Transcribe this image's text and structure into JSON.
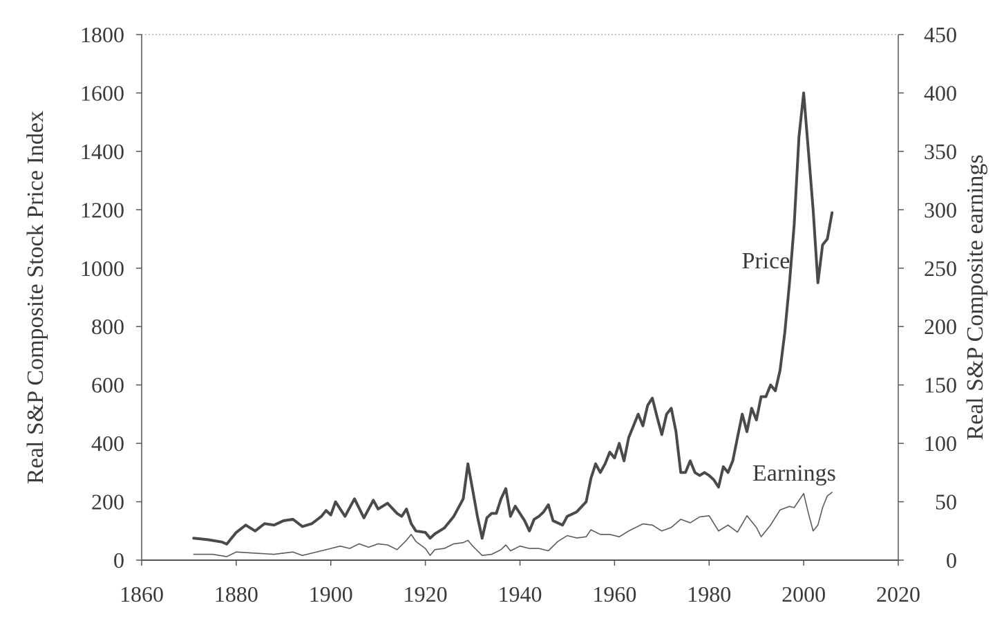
{
  "chart_data": {
    "type": "line",
    "title": "",
    "xlabel": "",
    "ylabel": "Real S&P Composite Stock Price Index",
    "y2label": "Real S&P Composite earnings",
    "xlim": [
      1860,
      2020
    ],
    "ylim": [
      0,
      1800
    ],
    "y2lim": [
      0,
      450
    ],
    "x_ticks": [
      1860,
      1880,
      1900,
      1920,
      1940,
      1960,
      1980,
      2000,
      2020
    ],
    "y_ticks": [
      0,
      200,
      400,
      600,
      800,
      1000,
      1200,
      1400,
      1600,
      1800
    ],
    "y2_ticks": [
      0,
      50,
      100,
      150,
      200,
      250,
      300,
      350,
      400,
      450
    ],
    "grid": false,
    "legend": "none (series labelled directly on plot)",
    "colors": {
      "price": "#4a4a4a",
      "earnings": "#5a5a5a",
      "axes": "#666666",
      "text": "#3a3a3a"
    },
    "series": [
      {
        "name": "Price",
        "axis": "left",
        "label_at": [
          1992,
          1000
        ],
        "points": [
          [
            1871,
            75
          ],
          [
            1874,
            70
          ],
          [
            1877,
            62
          ],
          [
            1878,
            55
          ],
          [
            1880,
            95
          ],
          [
            1882,
            120
          ],
          [
            1884,
            100
          ],
          [
            1886,
            125
          ],
          [
            1888,
            120
          ],
          [
            1890,
            135
          ],
          [
            1892,
            140
          ],
          [
            1894,
            115
          ],
          [
            1896,
            125
          ],
          [
            1898,
            150
          ],
          [
            1899,
            170
          ],
          [
            1900,
            155
          ],
          [
            1901,
            200
          ],
          [
            1903,
            150
          ],
          [
            1905,
            210
          ],
          [
            1907,
            145
          ],
          [
            1909,
            205
          ],
          [
            1910,
            175
          ],
          [
            1912,
            195
          ],
          [
            1914,
            160
          ],
          [
            1915,
            150
          ],
          [
            1916,
            175
          ],
          [
            1917,
            125
          ],
          [
            1918,
            100
          ],
          [
            1920,
            95
          ],
          [
            1921,
            75
          ],
          [
            1922,
            90
          ],
          [
            1924,
            110
          ],
          [
            1926,
            150
          ],
          [
            1928,
            210
          ],
          [
            1929,
            330
          ],
          [
            1930,
            240
          ],
          [
            1931,
            150
          ],
          [
            1932,
            75
          ],
          [
            1933,
            145
          ],
          [
            1934,
            160
          ],
          [
            1935,
            160
          ],
          [
            1936,
            210
          ],
          [
            1937,
            245
          ],
          [
            1938,
            150
          ],
          [
            1939,
            185
          ],
          [
            1940,
            160
          ],
          [
            1941,
            135
          ],
          [
            1942,
            100
          ],
          [
            1943,
            140
          ],
          [
            1944,
            150
          ],
          [
            1945,
            165
          ],
          [
            1946,
            190
          ],
          [
            1947,
            135
          ],
          [
            1949,
            120
          ],
          [
            1950,
            150
          ],
          [
            1952,
            165
          ],
          [
            1954,
            200
          ],
          [
            1955,
            280
          ],
          [
            1956,
            330
          ],
          [
            1957,
            300
          ],
          [
            1958,
            330
          ],
          [
            1959,
            370
          ],
          [
            1960,
            350
          ],
          [
            1961,
            400
          ],
          [
            1962,
            340
          ],
          [
            1963,
            420
          ],
          [
            1964,
            460
          ],
          [
            1965,
            500
          ],
          [
            1966,
            460
          ],
          [
            1967,
            530
          ],
          [
            1968,
            555
          ],
          [
            1969,
            490
          ],
          [
            1970,
            430
          ],
          [
            1971,
            500
          ],
          [
            1972,
            520
          ],
          [
            1973,
            440
          ],
          [
            1974,
            300
          ],
          [
            1975,
            300
          ],
          [
            1976,
            340
          ],
          [
            1977,
            300
          ],
          [
            1978,
            290
          ],
          [
            1979,
            300
          ],
          [
            1980,
            290
          ],
          [
            1981,
            275
          ],
          [
            1982,
            250
          ],
          [
            1983,
            320
          ],
          [
            1984,
            300
          ],
          [
            1985,
            340
          ],
          [
            1986,
            420
          ],
          [
            1987,
            500
          ],
          [
            1988,
            440
          ],
          [
            1989,
            520
          ],
          [
            1990,
            480
          ],
          [
            1991,
            560
          ],
          [
            1992,
            560
          ],
          [
            1993,
            600
          ],
          [
            1994,
            580
          ],
          [
            1995,
            650
          ],
          [
            1996,
            780
          ],
          [
            1997,
            950
          ],
          [
            1998,
            1150
          ],
          [
            1999,
            1450
          ],
          [
            2000,
            1600
          ],
          [
            2001,
            1400
          ],
          [
            2002,
            1200
          ],
          [
            2003,
            950
          ],
          [
            2004,
            1080
          ],
          [
            2005,
            1100
          ],
          [
            2006,
            1190
          ]
        ]
      },
      {
        "name": "Earnings",
        "axis": "right",
        "label_at": [
          1998,
          68
        ],
        "points": [
          [
            1871,
            5
          ],
          [
            1875,
            5
          ],
          [
            1878,
            3
          ],
          [
            1880,
            7
          ],
          [
            1884,
            6
          ],
          [
            1888,
            5
          ],
          [
            1892,
            7
          ],
          [
            1894,
            4
          ],
          [
            1896,
            6
          ],
          [
            1898,
            8
          ],
          [
            1900,
            10
          ],
          [
            1902,
            12
          ],
          [
            1904,
            10
          ],
          [
            1906,
            14
          ],
          [
            1908,
            11
          ],
          [
            1910,
            14
          ],
          [
            1912,
            13
          ],
          [
            1914,
            9
          ],
          [
            1916,
            17
          ],
          [
            1917,
            22
          ],
          [
            1918,
            16
          ],
          [
            1920,
            10
          ],
          [
            1921,
            4
          ],
          [
            1922,
            9
          ],
          [
            1924,
            10
          ],
          [
            1926,
            14
          ],
          [
            1928,
            15
          ],
          [
            1929,
            17
          ],
          [
            1930,
            12
          ],
          [
            1932,
            4
          ],
          [
            1934,
            5
          ],
          [
            1936,
            9
          ],
          [
            1937,
            13
          ],
          [
            1938,
            8
          ],
          [
            1940,
            12
          ],
          [
            1942,
            10
          ],
          [
            1944,
            10
          ],
          [
            1946,
            8
          ],
          [
            1948,
            16
          ],
          [
            1950,
            21
          ],
          [
            1952,
            19
          ],
          [
            1954,
            20
          ],
          [
            1955,
            26
          ],
          [
            1957,
            22
          ],
          [
            1959,
            22
          ],
          [
            1961,
            20
          ],
          [
            1963,
            25
          ],
          [
            1966,
            31
          ],
          [
            1968,
            30
          ],
          [
            1970,
            25
          ],
          [
            1972,
            28
          ],
          [
            1974,
            35
          ],
          [
            1976,
            32
          ],
          [
            1978,
            37
          ],
          [
            1980,
            38
          ],
          [
            1982,
            25
          ],
          [
            1984,
            30
          ],
          [
            1986,
            24
          ],
          [
            1988,
            38
          ],
          [
            1990,
            28
          ],
          [
            1991,
            20
          ],
          [
            1993,
            30
          ],
          [
            1995,
            43
          ],
          [
            1997,
            46
          ],
          [
            1998,
            45
          ],
          [
            2000,
            57
          ],
          [
            2001,
            40
          ],
          [
            2002,
            25
          ],
          [
            2003,
            30
          ],
          [
            2004,
            45
          ],
          [
            2005,
            55
          ],
          [
            2006,
            58
          ]
        ]
      }
    ]
  }
}
